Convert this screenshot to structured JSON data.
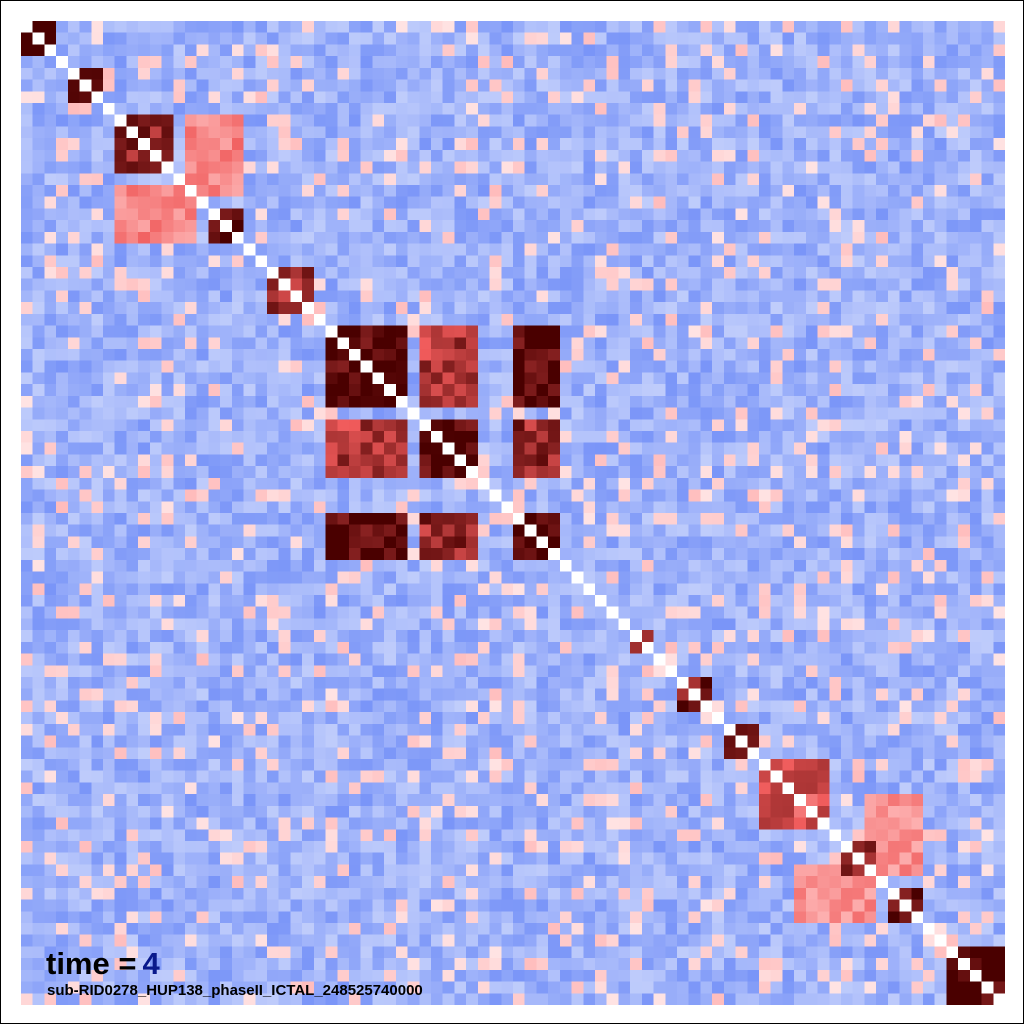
{
  "chart_data": {
    "type": "heatmap",
    "description_of_scale": "diverging colormap: blue = low, white = mid, red/dark-red = high",
    "n_rows": 84,
    "n_cols": 84,
    "diagonal_value": 0.5,
    "colors": {
      "low": "#4a6ff5",
      "mid": "#ffffff",
      "high": "#4a0000"
    },
    "blocks": [
      {
        "start": 0,
        "end": 2,
        "value": 1.0
      },
      {
        "start": 4,
        "end": 6,
        "value": 0.9
      },
      {
        "start": 8,
        "end": 12,
        "value": 0.85
      },
      {
        "start": 16,
        "end": 18,
        "value": 0.9
      },
      {
        "start": 21,
        "end": 24,
        "value": 0.85
      },
      {
        "start": 26,
        "end": 32,
        "value": 1.0
      },
      {
        "start": 34,
        "end": 38,
        "value": 0.95
      },
      {
        "start": 42,
        "end": 45,
        "value": 1.0
      },
      {
        "start": 52,
        "end": 53,
        "value": 0.8
      },
      {
        "start": 56,
        "end": 58,
        "value": 0.9
      },
      {
        "start": 60,
        "end": 62,
        "value": 1.0
      },
      {
        "start": 63,
        "end": 68,
        "value": 0.7
      },
      {
        "start": 70,
        "end": 72,
        "value": 0.85
      },
      {
        "start": 74,
        "end": 76,
        "value": 0.95
      },
      {
        "start": 79,
        "end": 83,
        "value": 1.0
      }
    ],
    "cross_blocks": [
      {
        "rows": [
          26,
          32
        ],
        "cols": [
          34,
          38
        ],
        "value": 0.8
      },
      {
        "rows": [
          26,
          32
        ],
        "cols": [
          42,
          45
        ],
        "value": 1.0
      },
      {
        "rows": [
          34,
          38
        ],
        "cols": [
          42,
          45
        ],
        "value": 0.85
      },
      {
        "rows": [
          8,
          14
        ],
        "cols": [
          14,
          18
        ],
        "value": 0.55
      },
      {
        "rows": [
          72,
          76
        ],
        "cols": [
          66,
          72
        ],
        "value": 0.5
      }
    ]
  },
  "labels": {
    "time_prefix": "time =",
    "time_value": "4",
    "recording_id": "sub-RID0278_HUP138_phaseII_ICTAL_248525740000"
  }
}
